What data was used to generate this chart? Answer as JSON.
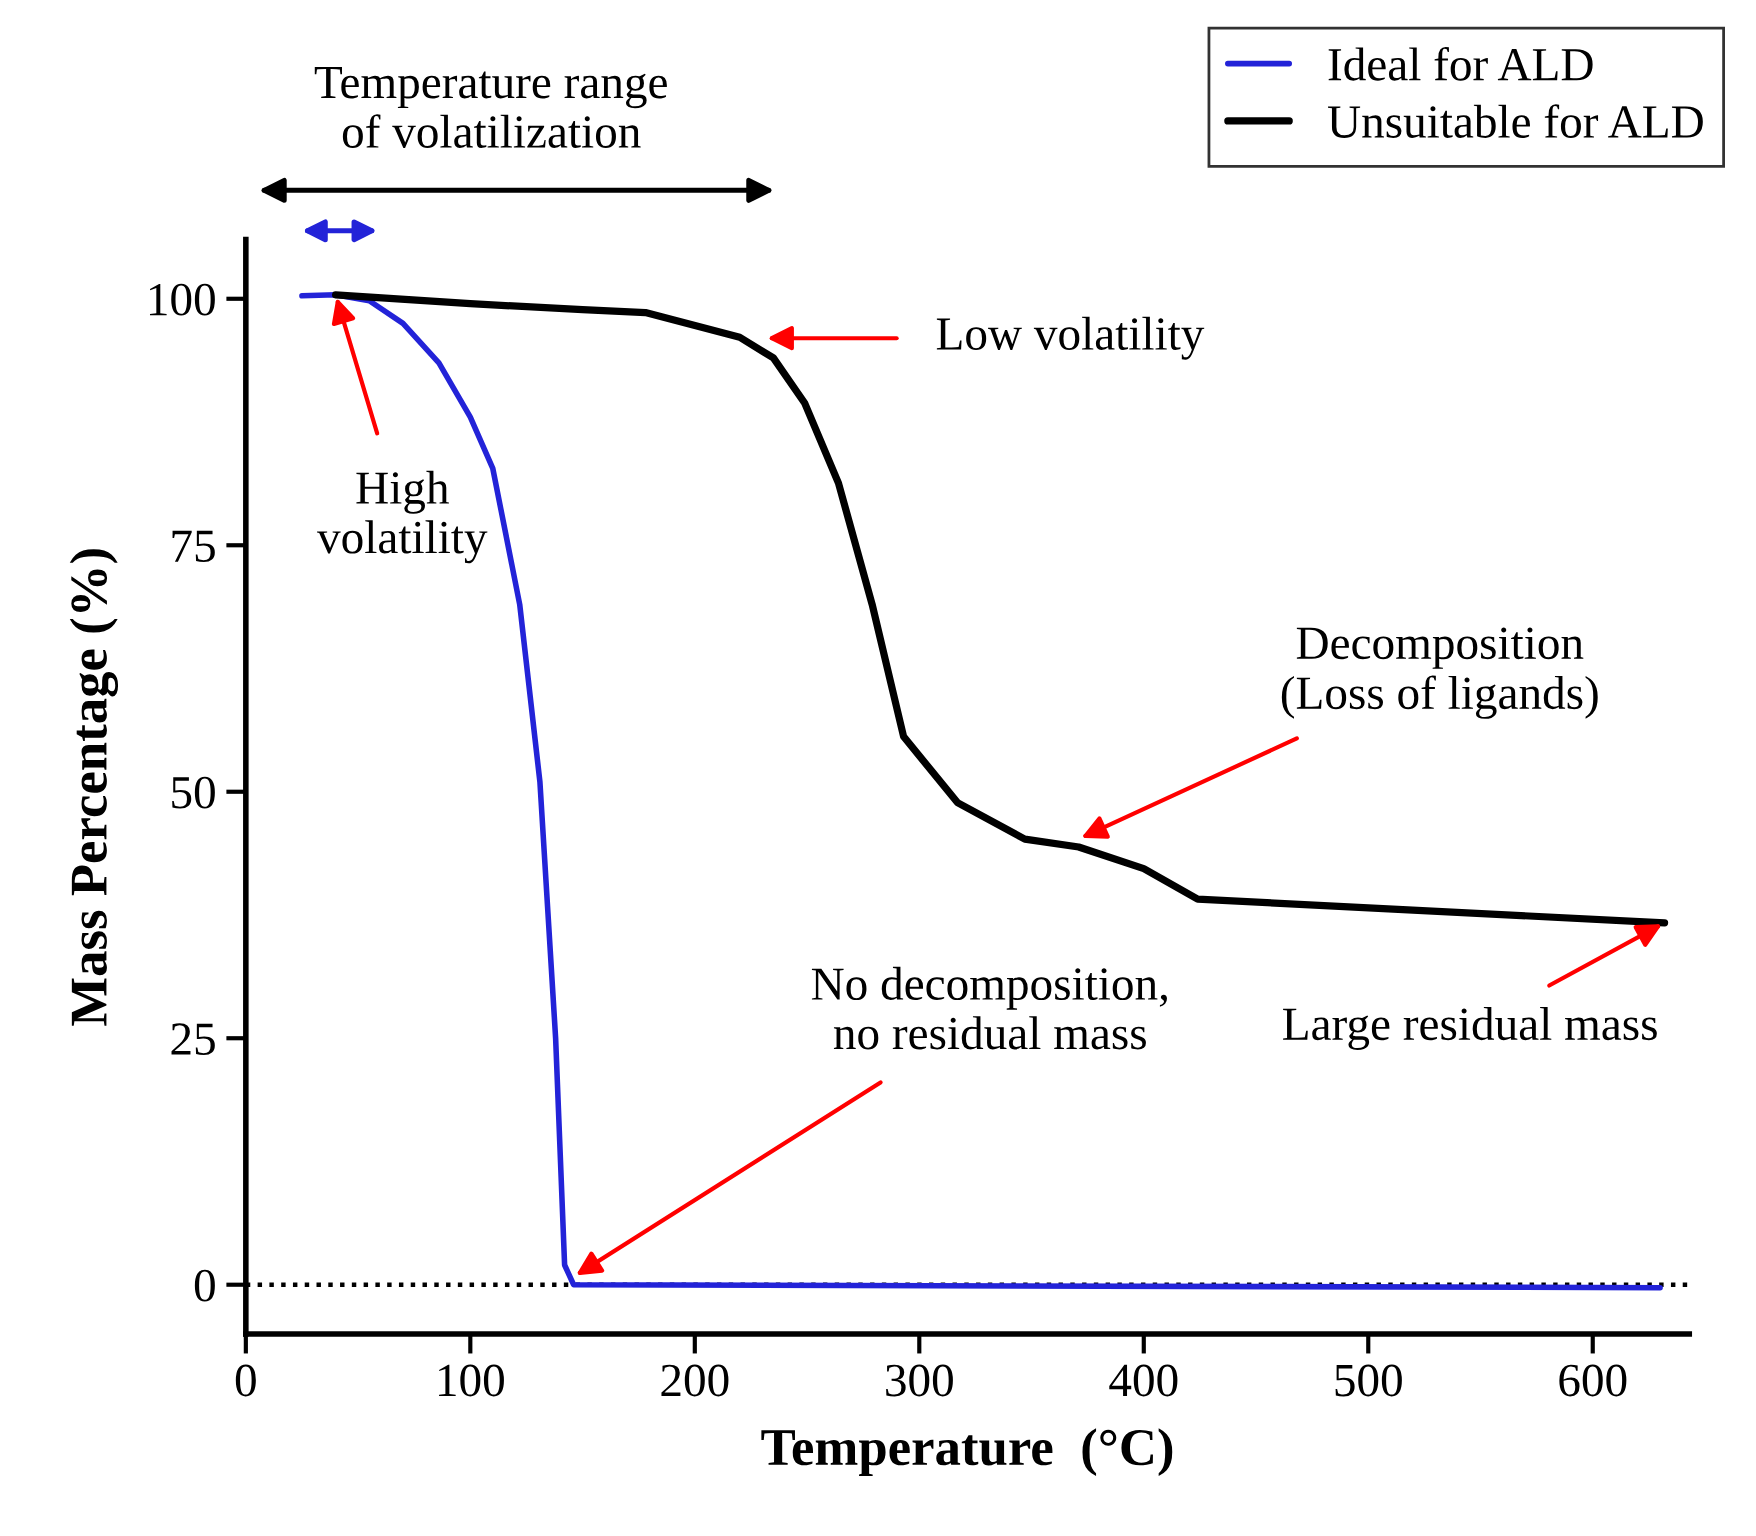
{
  "chart_data": {
    "type": "line",
    "xlabel": "Temperature  (°C)",
    "ylabel": "Mass Percentage (%)",
    "xlim": [
      0,
      643
    ],
    "ylim": [
      -5,
      106
    ],
    "xticks": [
      0,
      100,
      200,
      300,
      400,
      500,
      600
    ],
    "yticks": [
      0,
      25,
      50,
      75,
      100
    ],
    "grid": false,
    "legend": "top right",
    "line_style": "solid",
    "marker": "none",
    "series": [
      {
        "name": "Ideal for ALD",
        "color": "#2323d8",
        "x": [
          25,
          40,
          55,
          70,
          86,
          100,
          110,
          122,
          131,
          138,
          142,
          146,
          630
        ],
        "values": [
          100.3,
          100.4,
          99.8,
          97.5,
          93.5,
          88,
          82.8,
          69,
          51,
          25,
          2,
          0,
          -0.3
        ]
      },
      {
        "name": "Unsuitable for ALD",
        "color": "#000000",
        "x": [
          40,
          100,
          150,
          178,
          220,
          235,
          249,
          264,
          279,
          293,
          317,
          347,
          371,
          400,
          424,
          632
        ],
        "values": [
          100.4,
          99.5,
          98.9,
          98.6,
          96.1,
          94,
          89.4,
          81.3,
          69,
          55.6,
          48.9,
          45.2,
          44.4,
          42.2,
          39.1,
          36.7
        ]
      }
    ],
    "ref_lines": [
      {
        "axis": "y",
        "value": 0,
        "label": null,
        "color": "#000000",
        "line_style": "dotted"
      }
    ],
    "annotations": [
      "Temperature range\nof volatilization",
      {
        "text": "High\nvolatility",
        "x": 40,
        "y": 100.4
      },
      {
        "text": "Low volatility",
        "x": 231,
        "y": 96
      },
      {
        "text": "Decomposition\n(Loss of ligands)",
        "x": 371,
        "y": 45.2
      },
      {
        "text": "Large residual mass",
        "x": 632,
        "y": 36.7
      },
      {
        "text": "No decomposition,\nno residual mass",
        "x": 146,
        "y": 0.8
      }
    ]
  }
}
